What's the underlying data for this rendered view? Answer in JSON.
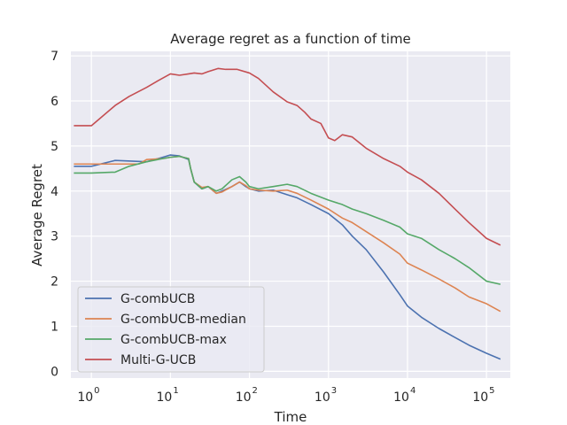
{
  "chart_data": {
    "type": "line",
    "title": "Average regret as a function of time",
    "xlabel": "Time",
    "ylabel": "Average Regret",
    "xscale": "log",
    "xlim": [
      0.55,
      200000
    ],
    "ylim": [
      -0.15,
      7.1
    ],
    "x_ticks": [
      {
        "value": 1,
        "base": "10",
        "exp": "0"
      },
      {
        "value": 10,
        "base": "10",
        "exp": "1"
      },
      {
        "value": 100,
        "base": "10",
        "exp": "2"
      },
      {
        "value": 1000,
        "base": "10",
        "exp": "3"
      },
      {
        "value": 10000,
        "base": "10",
        "exp": "4"
      },
      {
        "value": 100000,
        "base": "10",
        "exp": "5"
      }
    ],
    "y_ticks": [
      0,
      1,
      2,
      3,
      4,
      5,
      6,
      7
    ],
    "grid": true,
    "legend_position": "lower-left",
    "series": [
      {
        "name": "G-combUCB",
        "color": "#4c72b0",
        "points": [
          [
            0.6,
            4.55
          ],
          [
            1,
            4.55
          ],
          [
            2,
            4.68
          ],
          [
            5,
            4.65
          ],
          [
            8,
            4.75
          ],
          [
            10,
            4.8
          ],
          [
            13,
            4.78
          ],
          [
            17,
            4.7
          ],
          [
            18,
            4.5
          ],
          [
            20,
            4.2
          ],
          [
            25,
            4.05
          ],
          [
            30,
            4.1
          ],
          [
            38,
            3.95
          ],
          [
            45,
            4.0
          ],
          [
            60,
            4.1
          ],
          [
            75,
            4.2
          ],
          [
            90,
            4.1
          ],
          [
            100,
            4.05
          ],
          [
            130,
            4.0
          ],
          [
            200,
            4.02
          ],
          [
            300,
            3.92
          ],
          [
            400,
            3.85
          ],
          [
            600,
            3.7
          ],
          [
            1000,
            3.5
          ],
          [
            1500,
            3.25
          ],
          [
            2000,
            3.0
          ],
          [
            3000,
            2.7
          ],
          [
            5000,
            2.2
          ],
          [
            8000,
            1.7
          ],
          [
            10000,
            1.45
          ],
          [
            15000,
            1.2
          ],
          [
            25000,
            0.95
          ],
          [
            40000,
            0.75
          ],
          [
            60000,
            0.58
          ],
          [
            100000,
            0.4
          ],
          [
            150000,
            0.27
          ]
        ]
      },
      {
        "name": "G-combUCB-median",
        "color": "#dd8452",
        "points": [
          [
            0.6,
            4.6
          ],
          [
            1,
            4.6
          ],
          [
            2,
            4.6
          ],
          [
            4,
            4.6
          ],
          [
            5,
            4.7
          ],
          [
            8,
            4.72
          ],
          [
            10,
            4.75
          ],
          [
            13,
            4.77
          ],
          [
            17,
            4.72
          ],
          [
            18,
            4.5
          ],
          [
            20,
            4.2
          ],
          [
            25,
            4.08
          ],
          [
            30,
            4.1
          ],
          [
            38,
            3.95
          ],
          [
            45,
            3.98
          ],
          [
            60,
            4.1
          ],
          [
            75,
            4.2
          ],
          [
            90,
            4.12
          ],
          [
            100,
            4.05
          ],
          [
            130,
            4.02
          ],
          [
            200,
            4.0
          ],
          [
            300,
            4.02
          ],
          [
            400,
            3.95
          ],
          [
            600,
            3.8
          ],
          [
            1000,
            3.6
          ],
          [
            1500,
            3.4
          ],
          [
            2000,
            3.3
          ],
          [
            3000,
            3.1
          ],
          [
            5000,
            2.85
          ],
          [
            8000,
            2.6
          ],
          [
            10000,
            2.4
          ],
          [
            15000,
            2.25
          ],
          [
            25000,
            2.05
          ],
          [
            40000,
            1.85
          ],
          [
            60000,
            1.65
          ],
          [
            100000,
            1.5
          ],
          [
            150000,
            1.33
          ]
        ]
      },
      {
        "name": "G-combUCB-max",
        "color": "#55a868",
        "points": [
          [
            0.6,
            4.4
          ],
          [
            1,
            4.4
          ],
          [
            2,
            4.42
          ],
          [
            3,
            4.55
          ],
          [
            5,
            4.65
          ],
          [
            8,
            4.72
          ],
          [
            10,
            4.75
          ],
          [
            13,
            4.77
          ],
          [
            17,
            4.72
          ],
          [
            18,
            4.5
          ],
          [
            20,
            4.2
          ],
          [
            25,
            4.05
          ],
          [
            30,
            4.1
          ],
          [
            38,
            4.0
          ],
          [
            45,
            4.05
          ],
          [
            60,
            4.25
          ],
          [
            75,
            4.32
          ],
          [
            90,
            4.2
          ],
          [
            100,
            4.1
          ],
          [
            130,
            4.05
          ],
          [
            200,
            4.1
          ],
          [
            300,
            4.15
          ],
          [
            400,
            4.1
          ],
          [
            600,
            3.95
          ],
          [
            1000,
            3.8
          ],
          [
            1500,
            3.7
          ],
          [
            2000,
            3.6
          ],
          [
            3000,
            3.5
          ],
          [
            5000,
            3.35
          ],
          [
            8000,
            3.2
          ],
          [
            10000,
            3.05
          ],
          [
            15000,
            2.95
          ],
          [
            25000,
            2.7
          ],
          [
            40000,
            2.5
          ],
          [
            60000,
            2.3
          ],
          [
            100000,
            2.0
          ],
          [
            150000,
            1.93
          ]
        ]
      },
      {
        "name": "Multi-G-UCB",
        "color": "#c44e52",
        "points": [
          [
            0.6,
            5.45
          ],
          [
            1,
            5.45
          ],
          [
            2,
            5.9
          ],
          [
            3,
            6.1
          ],
          [
            5,
            6.3
          ],
          [
            7,
            6.45
          ],
          [
            10,
            6.6
          ],
          [
            13,
            6.57
          ],
          [
            17,
            6.6
          ],
          [
            20,
            6.62
          ],
          [
            25,
            6.6
          ],
          [
            30,
            6.65
          ],
          [
            40,
            6.72
          ],
          [
            50,
            6.7
          ],
          [
            70,
            6.7
          ],
          [
            100,
            6.62
          ],
          [
            130,
            6.5
          ],
          [
            200,
            6.2
          ],
          [
            300,
            5.98
          ],
          [
            400,
            5.9
          ],
          [
            500,
            5.75
          ],
          [
            600,
            5.6
          ],
          [
            800,
            5.5
          ],
          [
            1000,
            5.18
          ],
          [
            1200,
            5.12
          ],
          [
            1500,
            5.25
          ],
          [
            2000,
            5.2
          ],
          [
            3000,
            4.95
          ],
          [
            5000,
            4.72
          ],
          [
            8000,
            4.55
          ],
          [
            10000,
            4.42
          ],
          [
            15000,
            4.25
          ],
          [
            25000,
            3.95
          ],
          [
            40000,
            3.6
          ],
          [
            60000,
            3.3
          ],
          [
            100000,
            2.95
          ],
          [
            150000,
            2.8
          ]
        ]
      }
    ]
  }
}
